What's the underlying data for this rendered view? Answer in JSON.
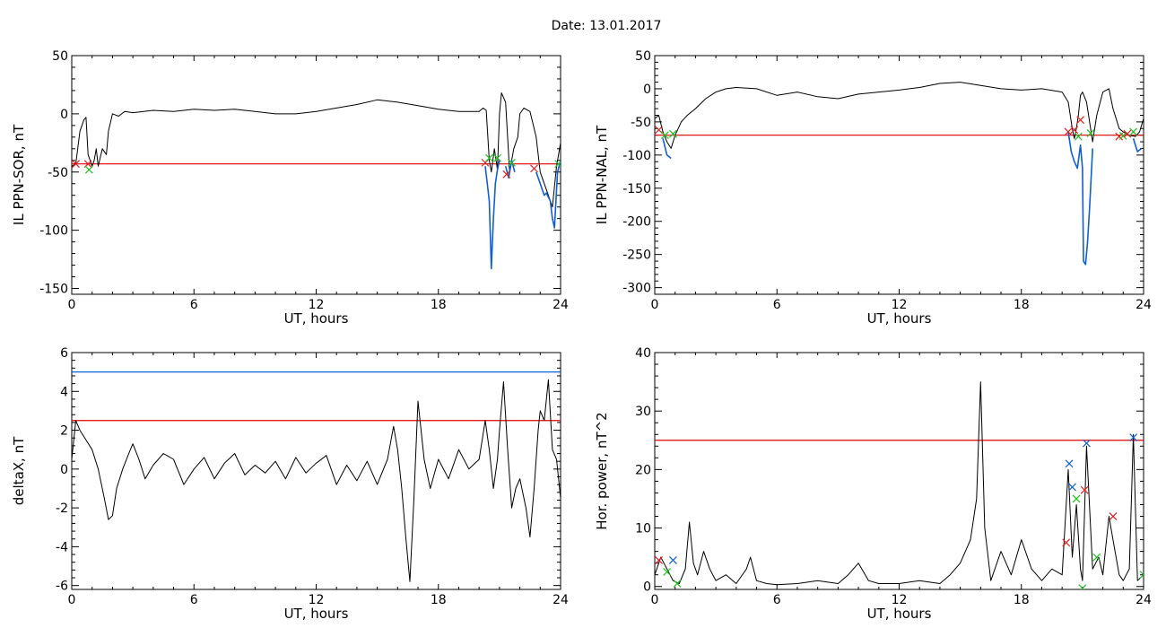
{
  "page": {
    "date_label": "Date:  13.01.2017"
  },
  "colors": {
    "trace": "#000000",
    "threshold": "#e00000",
    "limit_blue": "#0060d0",
    "active_blue": "#1060d0",
    "marker_green": "#20c020",
    "marker_red": "#e02020",
    "marker_blue": "#1060d0"
  },
  "chart_data": [
    {
      "id": "ppn-sor",
      "type": "line",
      "title": "",
      "xlabel": "UT, hours",
      "ylabel": "IL PPN-SOR, nT",
      "xlim": [
        0,
        24
      ],
      "ylim": [
        -155,
        50
      ],
      "xticks": [
        0,
        6,
        12,
        18,
        24
      ],
      "yticks": [
        -150,
        -100,
        -50,
        0,
        50
      ],
      "grid": false,
      "thresholds": [
        {
          "y": -43,
          "color": "#e00000"
        }
      ],
      "series": [
        {
          "color": "#000000",
          "x": [
            0,
            0.2,
            0.4,
            0.6,
            0.7,
            0.8,
            1.0,
            1.1,
            1.2,
            1.3,
            1.5,
            1.7,
            1.8,
            2.0,
            2.3,
            2.6,
            3.0,
            4.0,
            5.0,
            6.0,
            7.0,
            8.0,
            9.0,
            10.0,
            11.0,
            12.0,
            13.0,
            14.0,
            15.0,
            16.0,
            17.0,
            18.0,
            19.0,
            20.0,
            20.2,
            20.35,
            20.5,
            20.6,
            20.75,
            20.9,
            21.0,
            21.1,
            21.3,
            21.5,
            21.7,
            21.9,
            22.0,
            22.2,
            22.5,
            22.8,
            23.0,
            23.2,
            23.4,
            23.6,
            23.8,
            24.0
          ],
          "y": [
            -45,
            -43,
            -15,
            -5,
            -3,
            -35,
            -45,
            -40,
            -30,
            -45,
            -30,
            -35,
            -15,
            0,
            -2,
            2,
            1,
            3,
            2,
            4,
            3,
            4,
            2,
            0,
            0,
            2,
            5,
            8,
            12,
            10,
            7,
            4,
            2,
            2,
            5,
            3,
            -40,
            -50,
            -30,
            -48,
            0,
            18,
            10,
            -50,
            -30,
            -20,
            0,
            5,
            2,
            -20,
            -50,
            -60,
            -70,
            -80,
            -45,
            -25
          ]
        },
        {
          "color": "#1060d0",
          "x": [
            20.3,
            20.4,
            20.5,
            20.6,
            20.7,
            20.8,
            20.9,
            21.0
          ],
          "y": [
            -45,
            -60,
            -75,
            -133,
            -90,
            -60,
            -48,
            -40
          ]
        },
        {
          "color": "#1060d0",
          "x": [
            21.3,
            21.45,
            21.6,
            21.75
          ],
          "y": [
            -45,
            -55,
            -40,
            -50
          ]
        },
        {
          "color": "#1060d0",
          "x": [
            22.8,
            23.0,
            23.2,
            23.3,
            23.5,
            23.6,
            23.7,
            23.85,
            24.0
          ],
          "y": [
            -50,
            -60,
            -70,
            -68,
            -75,
            -90,
            -98,
            -50,
            -40
          ]
        }
      ],
      "markers": [
        {
          "x": 0.2,
          "y": -43,
          "color": "#e02020"
        },
        {
          "x": 0.8,
          "y": -43,
          "color": "#e02020"
        },
        {
          "x": 0.85,
          "y": -48,
          "color": "#20c020"
        },
        {
          "x": 20.3,
          "y": -42,
          "color": "#e02020"
        },
        {
          "x": 20.5,
          "y": -38,
          "color": "#20c020"
        },
        {
          "x": 20.9,
          "y": -38,
          "color": "#20c020"
        },
        {
          "x": 21.35,
          "y": -52,
          "color": "#e02020"
        },
        {
          "x": 21.6,
          "y": -42,
          "color": "#20c020"
        },
        {
          "x": 22.7,
          "y": -47,
          "color": "#e02020"
        },
        {
          "x": 23.9,
          "y": -43,
          "color": "#20c020"
        }
      ]
    },
    {
      "id": "ppn-nal",
      "type": "line",
      "title": "",
      "xlabel": "UT, hours",
      "ylabel": "IL PPN-NAL, nT",
      "xlim": [
        0,
        24
      ],
      "ylim": [
        -310,
        50
      ],
      "xticks": [
        0,
        6,
        12,
        18,
        24
      ],
      "yticks": [
        -300,
        -250,
        -200,
        -150,
        -100,
        -50,
        0,
        50
      ],
      "grid": false,
      "thresholds": [
        {
          "y": -70,
          "color": "#e00000"
        }
      ],
      "series": [
        {
          "color": "#000000",
          "x": [
            0,
            0.2,
            0.4,
            0.6,
            0.8,
            1.0,
            1.3,
            1.6,
            2.0,
            2.5,
            3.0,
            3.5,
            4.0,
            5.0,
            6.0,
            7.0,
            8.0,
            9.0,
            10.0,
            11.0,
            12.0,
            13.0,
            14.0,
            15.0,
            16.0,
            17.0,
            18.0,
            19.0,
            20.0,
            20.3,
            20.5,
            20.6,
            20.7,
            20.8,
            20.9,
            21.0,
            21.2,
            21.5,
            21.7,
            22.0,
            22.3,
            22.5,
            22.8,
            23.0,
            23.3,
            23.6,
            23.8,
            24.0
          ],
          "y": [
            -45,
            -40,
            -65,
            -80,
            -90,
            -70,
            -50,
            -40,
            -30,
            -15,
            -5,
            0,
            2,
            0,
            -10,
            -5,
            -12,
            -15,
            -8,
            -5,
            -2,
            2,
            8,
            10,
            5,
            0,
            -2,
            0,
            -5,
            -20,
            -60,
            -75,
            -60,
            -40,
            -10,
            -5,
            -20,
            -80,
            -40,
            -5,
            0,
            -30,
            -60,
            -65,
            -70,
            -72,
            -65,
            -45
          ]
        },
        {
          "color": "#1060d0",
          "x": [
            20.3,
            20.45,
            20.6,
            20.75,
            20.9,
            21.0,
            21.05,
            21.15,
            21.25,
            21.35,
            21.5
          ],
          "y": [
            -65,
            -95,
            -110,
            -120,
            -85,
            -120,
            -260,
            -265,
            -230,
            -180,
            -90
          ]
        },
        {
          "color": "#1060d0",
          "x": [
            0.4,
            0.6,
            0.8
          ],
          "y": [
            -75,
            -100,
            -105
          ]
        },
        {
          "color": "#1060d0",
          "x": [
            23.5,
            23.7,
            23.9
          ],
          "y": [
            -75,
            -95,
            -90
          ]
        }
      ],
      "markers": [
        {
          "x": 0.2,
          "y": -62,
          "color": "#e02020"
        },
        {
          "x": 0.5,
          "y": -70,
          "color": "#20c020"
        },
        {
          "x": 0.9,
          "y": -68,
          "color": "#20c020"
        },
        {
          "x": 20.3,
          "y": -65,
          "color": "#e02020"
        },
        {
          "x": 20.6,
          "y": -62,
          "color": "#e02020"
        },
        {
          "x": 20.8,
          "y": -72,
          "color": "#20c020"
        },
        {
          "x": 20.9,
          "y": -47,
          "color": "#e02020"
        },
        {
          "x": 21.4,
          "y": -67,
          "color": "#20c020"
        },
        {
          "x": 22.8,
          "y": -72,
          "color": "#e02020"
        },
        {
          "x": 23.0,
          "y": -71,
          "color": "#20c020"
        },
        {
          "x": 23.2,
          "y": -68,
          "color": "#e02020"
        },
        {
          "x": 23.5,
          "y": -65,
          "color": "#20c020"
        }
      ]
    },
    {
      "id": "deltax",
      "type": "line",
      "title": "",
      "xlabel": "UT, hours",
      "ylabel": "deltaX, nT",
      "xlim": [
        0,
        24
      ],
      "ylim": [
        -6.2,
        6
      ],
      "xticks": [
        0,
        6,
        12,
        18,
        24
      ],
      "yticks": [
        -6,
        -4,
        -2,
        0,
        2,
        4,
        6
      ],
      "grid": false,
      "thresholds": [
        {
          "y": 2.5,
          "color": "#e00000"
        },
        {
          "y": 5.0,
          "color": "#0060d0"
        }
      ],
      "series": [
        {
          "color": "#000000",
          "x": [
            0,
            0.2,
            0.4,
            0.7,
            1.0,
            1.3,
            1.6,
            1.8,
            2.0,
            2.2,
            2.5,
            2.8,
            3.0,
            3.3,
            3.6,
            4.0,
            4.5,
            5.0,
            5.5,
            6.0,
            6.5,
            7.0,
            7.5,
            8.0,
            8.5,
            9.0,
            9.5,
            10.0,
            10.5,
            11.0,
            11.5,
            12.0,
            12.5,
            13.0,
            13.5,
            14.0,
            14.5,
            15.0,
            15.5,
            15.8,
            16.0,
            16.2,
            16.4,
            16.6,
            16.8,
            17.0,
            17.3,
            17.6,
            18.0,
            18.5,
            19.0,
            19.5,
            20.0,
            20.3,
            20.5,
            20.7,
            20.9,
            21.0,
            21.2,
            21.4,
            21.6,
            21.8,
            22.0,
            22.3,
            22.5,
            22.7,
            22.9,
            23.0,
            23.2,
            23.4,
            23.6,
            23.8,
            24.0
          ],
          "y": [
            0.5,
            2.5,
            2.0,
            1.5,
            1.0,
            0.0,
            -1.5,
            -2.6,
            -2.4,
            -1.0,
            0.0,
            0.8,
            1.3,
            0.5,
            -0.5,
            0.2,
            0.8,
            0.5,
            -0.8,
            0.0,
            0.6,
            -0.5,
            0.3,
            0.8,
            -0.3,
            0.2,
            -0.2,
            0.4,
            -0.5,
            0.6,
            -0.2,
            0.3,
            0.7,
            -0.8,
            0.2,
            -0.6,
            0.4,
            -0.8,
            0.5,
            2.2,
            1.0,
            -1.0,
            -3.5,
            -5.8,
            -1.5,
            3.5,
            0.5,
            -1.0,
            0.5,
            -0.5,
            1.0,
            0.0,
            0.5,
            2.5,
            1.0,
            -1.0,
            0.5,
            2.0,
            4.5,
            1.0,
            -2.0,
            -1.0,
            -0.5,
            -2.0,
            -3.5,
            -1.0,
            2.0,
            3.0,
            2.5,
            4.6,
            1.0,
            0.5,
            -1.5
          ]
        }
      ],
      "markers": []
    },
    {
      "id": "hor-power",
      "type": "line",
      "title": "",
      "xlabel": "UT, hours",
      "ylabel": "Hor. power, nT^2",
      "xlim": [
        0,
        24
      ],
      "ylim": [
        -0.5,
        40
      ],
      "xticks": [
        0,
        6,
        12,
        18,
        24
      ],
      "yticks": [
        0,
        10,
        20,
        30,
        40
      ],
      "grid": false,
      "thresholds": [
        {
          "y": 25,
          "color": "#e00000"
        }
      ],
      "series": [
        {
          "color": "#000000",
          "x": [
            0,
            0.3,
            0.6,
            0.9,
            1.2,
            1.5,
            1.7,
            1.9,
            2.1,
            2.4,
            2.7,
            3.0,
            3.5,
            4.0,
            4.5,
            4.7,
            5.0,
            5.5,
            6.0,
            7.0,
            8.0,
            9.0,
            9.5,
            10.0,
            10.5,
            11.0,
            12.0,
            13.0,
            14.0,
            14.5,
            15.0,
            15.5,
            15.8,
            16.0,
            16.2,
            16.5,
            17.0,
            17.5,
            18.0,
            18.5,
            19.0,
            19.5,
            20.0,
            20.3,
            20.5,
            20.7,
            20.9,
            21.0,
            21.2,
            21.5,
            21.8,
            22.0,
            22.3,
            22.5,
            22.8,
            23.0,
            23.3,
            23.5,
            23.7,
            24.0
          ],
          "y": [
            2,
            5,
            3,
            1,
            0.5,
            3,
            11,
            4,
            2,
            6,
            3,
            1,
            2,
            0.5,
            3,
            5,
            1,
            0.5,
            0.3,
            0.5,
            1,
            0.5,
            2,
            4,
            1,
            0.5,
            0.5,
            1,
            0.5,
            2,
            4,
            8,
            15,
            35,
            10,
            1,
            6,
            2,
            8,
            3,
            1,
            3,
            2,
            20,
            5,
            14,
            3,
            1,
            24,
            3,
            5,
            2,
            12,
            8,
            2,
            1,
            3,
            26,
            1,
            2
          ]
        }
      ],
      "markers": [
        {
          "x": 0.2,
          "y": 4.5,
          "color": "#e02020"
        },
        {
          "x": 0.6,
          "y": 2.5,
          "color": "#20c020"
        },
        {
          "x": 0.9,
          "y": 4.5,
          "color": "#1060d0"
        },
        {
          "x": 1.1,
          "y": 0.5,
          "color": "#20c020"
        },
        {
          "x": 20.2,
          "y": 7.5,
          "color": "#e02020"
        },
        {
          "x": 20.35,
          "y": 21,
          "color": "#1060d0"
        },
        {
          "x": 20.5,
          "y": 17,
          "color": "#1060d0"
        },
        {
          "x": 20.7,
          "y": 15,
          "color": "#20c020"
        },
        {
          "x": 21.1,
          "y": 16.5,
          "color": "#e02020"
        },
        {
          "x": 21.2,
          "y": 24.5,
          "color": "#1060d0"
        },
        {
          "x": 21.0,
          "y": -0.3,
          "color": "#20c020"
        },
        {
          "x": 21.7,
          "y": 5,
          "color": "#20c020"
        },
        {
          "x": 22.5,
          "y": 12,
          "color": "#e02020"
        },
        {
          "x": 23.5,
          "y": 25.5,
          "color": "#1060d0"
        },
        {
          "x": 24.0,
          "y": 2,
          "color": "#20c020"
        }
      ]
    }
  ]
}
